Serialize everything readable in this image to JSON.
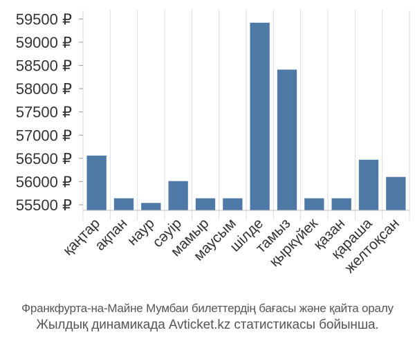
{
  "chart_data": {
    "type": "bar",
    "categories": [
      "қаңтар",
      "ақпан",
      "наур",
      "сәуір",
      "мамыр",
      "маусым",
      "шілде",
      "тамыз",
      "қыркүйек",
      "қазан",
      "қараша",
      "желтоқсан"
    ],
    "values": [
      56560,
      55640,
      55540,
      56010,
      55640,
      55640,
      59420,
      58410,
      55640,
      55640,
      56470,
      56100
    ],
    "yticks": [
      55500,
      56000,
      56500,
      57000,
      57500,
      58000,
      58500,
      59000,
      59500
    ],
    "ylim": [
      55380,
      59700
    ],
    "currency": "₽",
    "grid": "vertical",
    "bar_color": "#4e79a7"
  },
  "caption": {
    "line1": "Франкфурта-на-Майне Мумбаи билеттердің бағасы және қайта оралу",
    "line2": "Жылдық динамикада Avticket.kz статистикасы бойынша."
  }
}
